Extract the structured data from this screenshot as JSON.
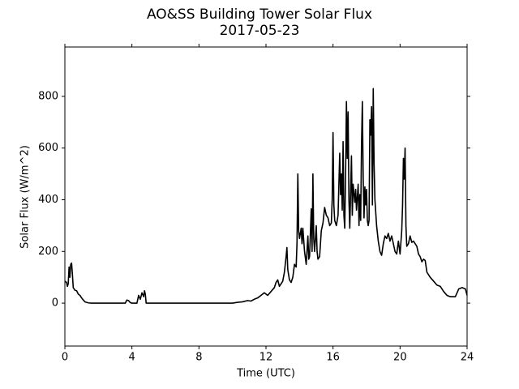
{
  "chart_data": {
    "type": "line",
    "title": "AO&SS Building Tower Solar Flux",
    "subtitle": "2017-05-23",
    "xlabel": "Time (UTC)",
    "ylabel": "Solar Flux (W/m^2)",
    "xlim": [
      0,
      24
    ],
    "xticks": [
      0,
      4,
      8,
      12,
      16,
      20,
      24
    ],
    "ylim": [
      -166,
      991
    ],
    "yticks": [
      0,
      200,
      400,
      600,
      800
    ],
    "grid": false,
    "series": [
      {
        "name": "Solar Flux",
        "color": "#000000",
        "x": [
          0,
          0.1,
          0.15,
          0.2,
          0.25,
          0.3,
          0.35,
          0.4,
          0.45,
          0.5,
          0.6,
          0.7,
          0.8,
          0.9,
          1.0,
          1.1,
          1.2,
          1.4,
          1.6,
          3.6,
          3.7,
          3.8,
          3.9,
          4.0,
          4.3,
          4.4,
          4.5,
          4.6,
          4.7,
          4.75,
          4.8,
          4.85,
          10.0,
          10.3,
          10.6,
          10.9,
          11.1,
          11.3,
          11.5,
          11.7,
          11.9,
          12.0,
          12.1,
          12.3,
          12.5,
          12.6,
          12.7,
          12.8,
          12.9,
          13.0,
          13.1,
          13.2,
          13.25,
          13.3,
          13.4,
          13.5,
          13.6,
          13.7,
          13.8,
          13.85,
          13.9,
          13.95,
          14.0,
          14.1,
          14.15,
          14.2,
          14.3,
          14.4,
          14.5,
          14.55,
          14.6,
          14.7,
          14.75,
          14.8,
          14.85,
          14.9,
          15.0,
          15.05,
          15.1,
          15.2,
          15.3,
          15.4,
          15.5,
          15.6,
          15.7,
          15.8,
          15.9,
          15.95,
          16.0,
          16.05,
          16.1,
          16.2,
          16.3,
          16.4,
          16.45,
          16.5,
          16.55,
          16.6,
          16.65,
          16.7,
          16.75,
          16.8,
          16.85,
          16.9,
          16.95,
          17.0,
          17.1,
          17.15,
          17.2,
          17.3,
          17.35,
          17.4,
          17.5,
          17.55,
          17.6,
          17.65,
          17.7,
          17.75,
          17.8,
          17.85,
          17.9,
          17.95,
          18.0,
          18.05,
          18.1,
          18.15,
          18.2,
          18.25,
          18.3,
          18.35,
          18.4,
          18.45,
          18.5,
          18.6,
          18.7,
          18.8,
          18.9,
          19.0,
          19.1,
          19.2,
          19.3,
          19.4,
          19.5,
          19.6,
          19.7,
          19.8,
          19.9,
          20.0,
          20.1,
          20.15,
          20.2,
          20.25,
          20.3,
          20.35,
          20.4,
          20.5,
          20.6,
          20.7,
          20.8,
          20.9,
          21.0,
          21.1,
          21.2,
          21.3,
          21.4,
          21.5,
          21.6,
          21.8,
          22.0,
          22.2,
          22.4,
          22.6,
          22.8,
          23.0,
          23.3,
          23.5,
          23.7,
          23.9,
          24.0
        ],
        "values": [
          85,
          80,
          65,
          75,
          140,
          100,
          150,
          155,
          110,
          60,
          50,
          48,
          35,
          30,
          20,
          12,
          5,
          1,
          0,
          0,
          12,
          10,
          2,
          0,
          0,
          30,
          15,
          40,
          25,
          48,
          35,
          0,
          0,
          3,
          5,
          10,
          8,
          15,
          20,
          30,
          40,
          35,
          30,
          45,
          60,
          80,
          90,
          65,
          75,
          85,
          120,
          180,
          215,
          130,
          90,
          80,
          100,
          150,
          140,
          230,
          500,
          280,
          250,
          290,
          230,
          290,
          200,
          150,
          260,
          170,
          180,
          365,
          200,
          500,
          250,
          200,
          300,
          200,
          170,
          180,
          280,
          310,
          370,
          340,
          330,
          300,
          310,
          400,
          660,
          380,
          320,
          300,
          340,
          580,
          420,
          500,
          360,
          625,
          340,
          290,
          500,
          780,
          560,
          740,
          400,
          290,
          570,
          340,
          460,
          390,
          440,
          360,
          460,
          300,
          420,
          320,
          610,
          780,
          480,
          330,
          450,
          380,
          440,
          320,
          300,
          320,
          710,
          650,
          760,
          380,
          830,
          540,
          400,
          300,
          240,
          200,
          185,
          230,
          260,
          250,
          270,
          240,
          260,
          230,
          200,
          190,
          240,
          190,
          280,
          380,
          560,
          480,
          600,
          300,
          220,
          230,
          260,
          235,
          240,
          230,
          220,
          190,
          180,
          160,
          170,
          165,
          120,
          100,
          85,
          70,
          65,
          45,
          30,
          25,
          25,
          55,
          60,
          55,
          30
        ]
      }
    ]
  }
}
